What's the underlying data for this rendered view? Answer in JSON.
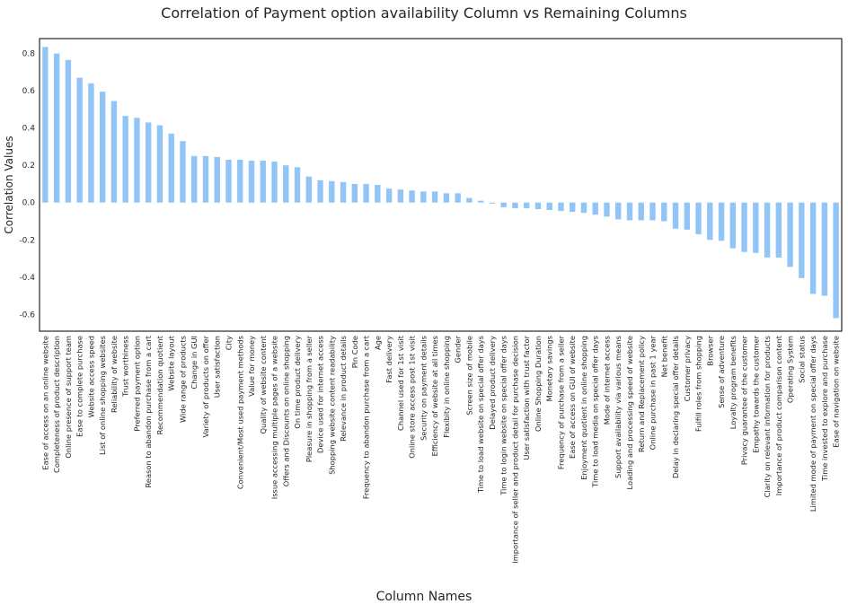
{
  "chart_data": {
    "type": "bar",
    "title": "Correlation of Payment option availability Column vs Remaining Columns",
    "xlabel": "Column Names",
    "ylabel": "Correlation Values",
    "ylim": [
      -0.69,
      0.88
    ],
    "yticks": [
      -0.6,
      -0.4,
      -0.2,
      0.0,
      0.2,
      0.4,
      0.6,
      0.8
    ],
    "ytick_labels": [
      "-0.6",
      "-0.4",
      "-0.2",
      "0.0",
      "0.2",
      "0.4",
      "0.6",
      "0.8"
    ],
    "grid": false,
    "bar_color": "#92c5f7",
    "categories": [
      "Ease of access on an online website",
      "Completeness of product description",
      "Online presence of support team",
      "Ease to complete purchase",
      "Website access speed",
      "List of online shopping websites",
      "Reliability of website",
      "Trust worthiness",
      "Preferred payment option",
      "Reason to abandon purchase from a cart",
      "Recommendation quotient",
      "Website layout",
      "Wide range of products",
      "Change in GUI",
      "Variety of products on offer",
      "User satisfaction",
      "City",
      "Convenient/Most used payment methods",
      "Value for money",
      "Quality of website content",
      "Issue accessing multiple pages of a website",
      "Offers and Discounts on online shopping",
      "On time product delivery",
      "Pleasure in shopping from a seller",
      "Device used for internet access",
      "Shopping website content readability",
      "Relevance in product details",
      "Pin Code",
      "Frequency to abandon purchase from a cart",
      "Age",
      "Fast delivery",
      "Channel used for 1st visit",
      "Online store access post 1st visit",
      "Security on payment details",
      "Efficiency of website at all times",
      "Flexibity in online shopping",
      "Gender",
      "Screen size of mobile",
      "Time to load website on special offer days",
      "Delayed product delivery",
      "Time to login website on special offer days",
      "Importance of seller and product detail for purchase decision",
      "User satisfaction with trust factor",
      "Online Shopping Duration",
      "Monetary savings",
      "Frequency of purchase from a seller",
      "Ease of access on GUI of website",
      "Enjoyment quotient in online shopping",
      "Time to load media on special offer days",
      "Mode of internet access",
      "Support availability via various means",
      "Loading and processing speed of website",
      "Return and Replacement policy",
      "Online purchase in past 1 year",
      "Net benefit",
      "Delay in declaring special offer details",
      "Customer privacy",
      "Fulfill roles from shopping",
      "Browser",
      "Sense of adventure",
      "Loyalty program benefits",
      "Privacy guarantee of the customer",
      "Empathy towards the customer",
      "Clarity on relevant information for products",
      "Importance of product comparison content",
      "Operating System",
      "Social status",
      "Limited mode of payment on special offer days",
      "Time invested to explore and purchase",
      "Ease of navigation on website"
    ],
    "values": [
      0.835,
      0.8,
      0.765,
      0.67,
      0.64,
      0.595,
      0.545,
      0.465,
      0.455,
      0.43,
      0.415,
      0.37,
      0.33,
      0.25,
      0.25,
      0.245,
      0.23,
      0.23,
      0.225,
      0.225,
      0.22,
      0.2,
      0.19,
      0.14,
      0.12,
      0.115,
      0.11,
      0.1,
      0.1,
      0.095,
      0.075,
      0.07,
      0.065,
      0.06,
      0.06,
      0.05,
      0.05,
      0.025,
      0.01,
      -0.005,
      -0.025,
      -0.03,
      -0.03,
      -0.035,
      -0.04,
      -0.045,
      -0.05,
      -0.055,
      -0.065,
      -0.075,
      -0.09,
      -0.095,
      -0.095,
      -0.095,
      -0.1,
      -0.14,
      -0.145,
      -0.17,
      -0.2,
      -0.205,
      -0.245,
      -0.265,
      -0.27,
      -0.295,
      -0.295,
      -0.345,
      -0.405,
      -0.49,
      -0.5,
      -0.62
    ]
  }
}
